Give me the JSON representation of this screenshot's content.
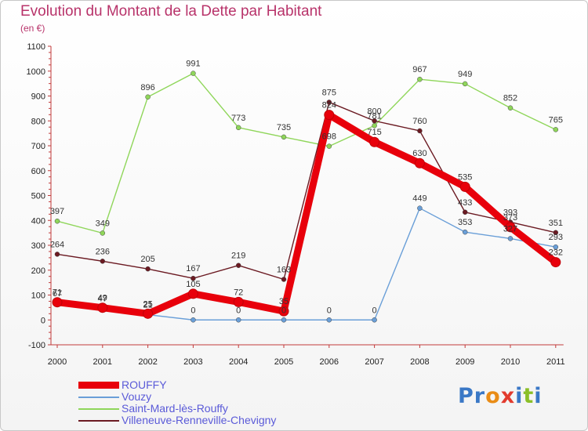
{
  "header": {
    "title": "Evolution du Montant de la Dette par Habitant",
    "unit": "(en €)"
  },
  "logo": {
    "text": "Proxiti",
    "colors": [
      "#3a78c6",
      "#3a78c6",
      "#e98c16",
      "#e23b2e",
      "#3a78c6",
      "#8bbf28",
      "#3a78c6"
    ]
  },
  "chart_data": {
    "type": "line",
    "title": "Evolution du Montant de la Dette par Habitant",
    "ylabel": "(en €)",
    "xlabel": "",
    "categories": [
      "2000",
      "2001",
      "2002",
      "2003",
      "2004",
      "2005",
      "2006",
      "2007",
      "2008",
      "2009",
      "2010",
      "2011"
    ],
    "yticks": [
      -100,
      0,
      100,
      200,
      300,
      400,
      500,
      600,
      700,
      800,
      900,
      1000,
      1100
    ],
    "ylim": [
      -100,
      1100
    ],
    "grid": false,
    "legend_position": "bottom",
    "series": [
      {
        "name": "ROUFFY",
        "color": "#e8000b",
        "values": [
          71,
          49,
          25,
          105,
          72,
          35,
          824,
          715,
          630,
          535,
          373,
          232
        ]
      },
      {
        "name": "Vouzy",
        "color": "#6a9fd8",
        "values": [
          67,
          47,
          21,
          0,
          0,
          0,
          0,
          0,
          449,
          353,
          327,
          293
        ]
      },
      {
        "name": "Saint-Mard-lès-Rouffy",
        "color": "#8fd65a",
        "values": [
          397,
          349,
          896,
          991,
          773,
          735,
          698,
          781,
          967,
          949,
          852,
          765
        ]
      },
      {
        "name": "Villeneuve-Renneville-Chevigny",
        "color": "#6b1a22",
        "values": [
          264,
          236,
          205,
          167,
          219,
          163,
          875,
          800,
          760,
          433,
          393,
          351
        ]
      }
    ]
  }
}
